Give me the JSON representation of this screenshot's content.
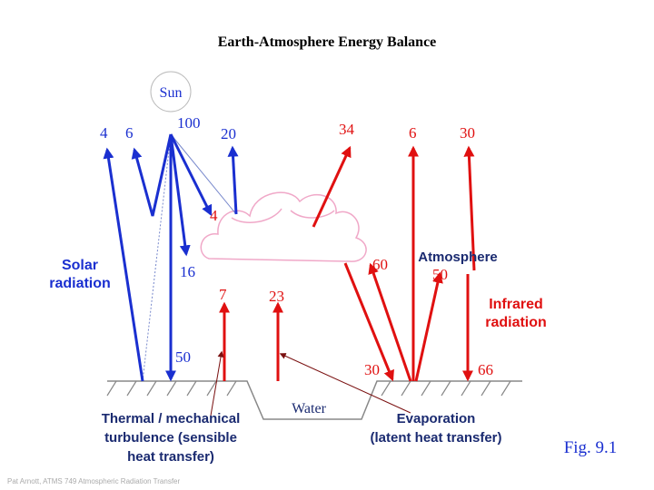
{
  "title": "Earth-Atmosphere Energy Balance",
  "sun": "Sun",
  "solar_arrows": [
    "4",
    "6",
    "100",
    "20",
    "4",
    "16",
    "50"
  ],
  "infrared_arrows": [
    "7",
    "23",
    "34",
    "6",
    "30",
    "60",
    "50",
    "30",
    "66"
  ],
  "labels": {
    "solar_radiation": [
      "Solar",
      "radiation"
    ],
    "atmosphere": "Atmosphere",
    "infrared_radiation": [
      "Infrared",
      "radiation"
    ],
    "water": "Water",
    "sensible": [
      "Thermal / mechanical",
      "turbulence (sensible",
      "heat transfer)"
    ],
    "latent": [
      "Evaporation",
      "(latent heat transfer)"
    ]
  },
  "figure": "Fig. 9.1",
  "footer": "Pat Arnott, ATMS 749 Atmospheric Radiation Transfer"
}
